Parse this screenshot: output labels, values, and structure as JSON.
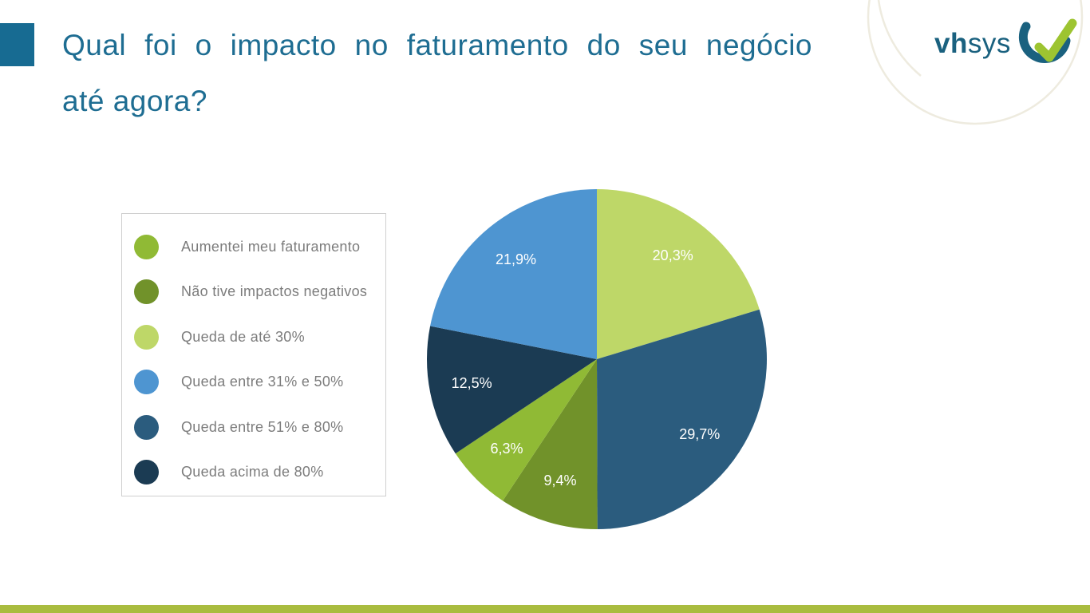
{
  "slide": {
    "title_line1": "Qual foi o impacto no faturamento do seu negócio",
    "title_line2": "até agora?",
    "title_color": "#1e6d92",
    "accent_color": "#176b92",
    "bottom_bar_color": "#a9bc3f",
    "deco_arc_color": "#eeebdf"
  },
  "logo": {
    "name_bold": "vh",
    "name_light": "sys",
    "teal": "#1a617f",
    "green": "#9dc431"
  },
  "legend": {
    "items": [
      {
        "label": "Aumentei meu faturamento",
        "color": "#90ba35"
      },
      {
        "label": "Não tive impactos negativos",
        "color": "#71922a"
      },
      {
        "label": "Queda de até 30%",
        "color": "#bed768"
      },
      {
        "label": "Queda entre 31% e 50%",
        "color": "#4e95d1"
      },
      {
        "label": "Queda entre 51% e 80%",
        "color": "#2b5c7e"
      },
      {
        "label": "Queda acima de 80%",
        "color": "#1b3b53"
      }
    ]
  },
  "chart_data": {
    "type": "pie",
    "title": "Qual foi o impacto no faturamento do seu negócio até agora?",
    "order": "clockwise-from-top",
    "start_angle_deg": 0,
    "legend_position": "left",
    "labels_decimal_separator": ",",
    "slices": [
      {
        "label": "Queda de até 30%",
        "value": 20.3,
        "display": "20,3%",
        "color": "#bed768"
      },
      {
        "label": "Queda entre 51% e 80%",
        "value": 29.7,
        "display": "29,7%",
        "color": "#2b5c7e"
      },
      {
        "label": "Não tive impactos negativos",
        "value": 9.4,
        "display": "9,4%",
        "color": "#71922a"
      },
      {
        "label": "Aumentei meu faturamento",
        "value": 6.3,
        "display": "6,3%",
        "color": "#90ba35"
      },
      {
        "label": "Queda acima de 80%",
        "value": 12.5,
        "display": "12,5%",
        "color": "#1b3b53"
      },
      {
        "label": "Queda entre 31% e 50%",
        "value": 21.9,
        "display": "21,9%",
        "color": "#4e95d1"
      }
    ]
  }
}
